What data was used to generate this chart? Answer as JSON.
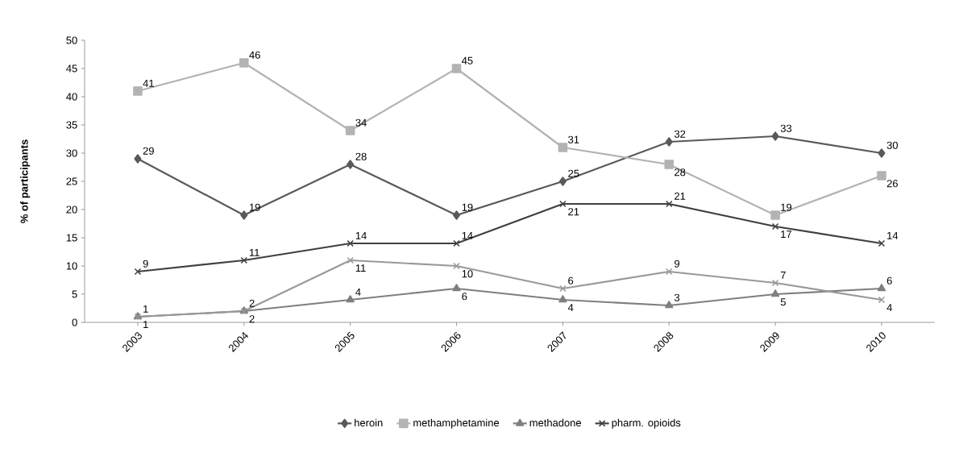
{
  "chart_data": {
    "type": "line",
    "ylabel": "**% of participants**",
    "categories": [
      "2003",
      "2004",
      "2005",
      "2006",
      "2007",
      "2008",
      "2009",
      "2010"
    ],
    "series": [
      {
        "name": "heroin",
        "color": "#595959",
        "marker": "diamond",
        "values": [
          29,
          19,
          28,
          19,
          25,
          32,
          33,
          30
        ]
      },
      {
        "name": "methamphetamine",
        "color": "#b3b3b3",
        "marker": "square",
        "values": [
          41,
          46,
          34,
          45,
          31,
          28,
          19,
          26
        ]
      },
      {
        "name": "methadone",
        "color": "#7f7f7f",
        "marker": "triangle",
        "values": [
          1,
          2,
          4,
          6,
          4,
          3,
          5,
          6
        ]
      },
      {
        "name": "pharm. opioids",
        "color": "#404040",
        "marker": "cross",
        "values": [
          9,
          11,
          14,
          14,
          21,
          21,
          17,
          14
        ]
      },
      {
        "color": "#999999",
        "marker": "cross",
        "values": [
          1,
          2,
          11,
          10,
          6,
          9,
          7,
          4
        ]
      }
    ],
    "ylim": [
      0,
      50
    ],
    "yticks": [
      0,
      5,
      10,
      15,
      20,
      25,
      30,
      35,
      40,
      45,
      50
    ],
    "data_labels": true,
    "legend": "bottom",
    "line_style": "solid",
    "grid": false
  }
}
